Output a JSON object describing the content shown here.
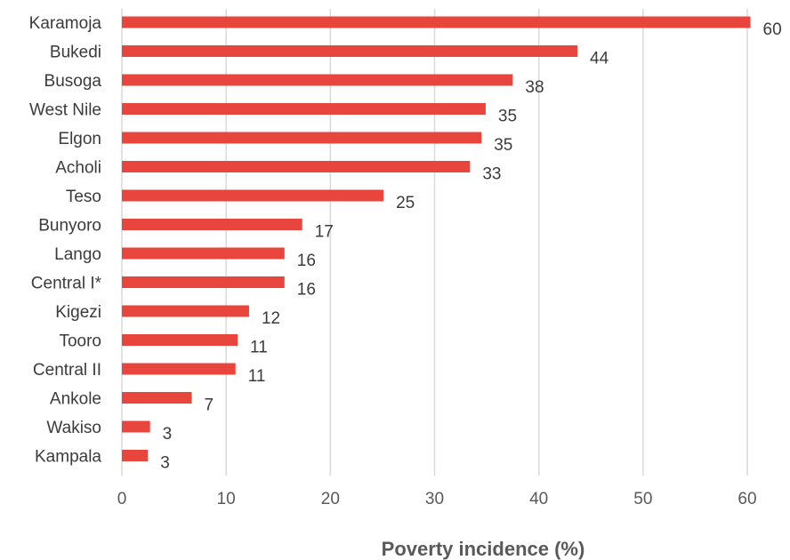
{
  "chart_data": {
    "type": "bar",
    "orientation": "horizontal",
    "categories": [
      "Karamoja",
      "Bukedi",
      "Busoga",
      "West Nile",
      "Elgon",
      "Acholi",
      "Teso",
      "Bunyoro",
      "Lango",
      "Central I*",
      "Kigezi",
      "Tooro",
      "Central II",
      "Ankole",
      "Wakiso",
      "Kampala"
    ],
    "values": [
      60.3,
      43.7,
      37.5,
      34.9,
      34.5,
      33.4,
      25.1,
      17.3,
      15.6,
      15.6,
      12.2,
      11.1,
      10.9,
      6.7,
      2.7,
      2.5
    ],
    "data_labels": [
      "60",
      "44",
      "38",
      "35",
      "35",
      "33",
      "25",
      "17",
      "16",
      "16",
      "12",
      "11",
      "11",
      "7",
      "3",
      "3"
    ],
    "xticks": [
      "0",
      "10",
      "20",
      "30",
      "40",
      "50",
      "60"
    ],
    "xlim": [
      0,
      60
    ],
    "xlabel": "Poverty incidence (%)",
    "ylabel": "",
    "title": "",
    "grid": "vertical",
    "legend": "none",
    "colors": {
      "bar": "#e8453c",
      "grid": "#d9d9d9",
      "text": "#3b3b3b",
      "axis_text": "#595959"
    }
  }
}
